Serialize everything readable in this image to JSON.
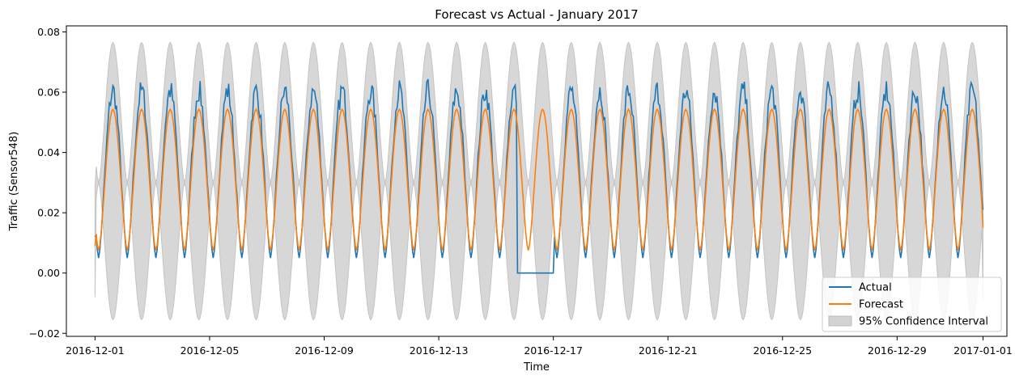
{
  "chart_data": {
    "type": "line",
    "title": "Forecast vs Actual - January 2017",
    "xlabel": "Time",
    "ylabel": "Traffic (Sensor548)",
    "xlim": [
      "2016-11-30T00:00",
      "2017-01-01T20:00"
    ],
    "ylim": [
      -0.021,
      0.082
    ],
    "x_ticks": [
      "2016-12-01",
      "2016-12-05",
      "2016-12-09",
      "2016-12-13",
      "2016-12-17",
      "2016-12-21",
      "2016-12-25",
      "2016-12-29",
      "2017-01-01"
    ],
    "y_ticks": [
      -0.02,
      0.0,
      0.02,
      0.04,
      0.06,
      0.08
    ],
    "y_tick_labels": [
      "−0.02",
      "0.00",
      "0.02",
      "0.04",
      "0.06",
      "0.08"
    ],
    "x_range_data": [
      "2016-12-01T00:00",
      "2017-01-01T00:00"
    ],
    "sampling": "hourly",
    "grid": false,
    "legend_position": "lower-right",
    "daily_pattern": {
      "period_hours": 24,
      "night_min_hour": 3,
      "forecast_min": 0.0075,
      "forecast_max": 0.0543,
      "actual_min": 0.005,
      "actual_max": 0.0605,
      "confidence_upper_max": 0.0765,
      "confidence_upper_min": 0.03,
      "confidence_lower_max": 0.03,
      "confidence_lower_min": -0.0155
    },
    "start_values": {
      "actual": 0.012,
      "forecast": 0.009,
      "ci_upper": 0.029,
      "ci_lower": -0.008
    },
    "end_values": {
      "actual": 0.021,
      "forecast": 0.015,
      "ci_upper": 0.031,
      "ci_lower": -0.009
    },
    "outage": {
      "series": "Actual",
      "start": "2016-12-15T18:00",
      "end": "2016-12-17T00:00",
      "value": 0.0
    },
    "series": [
      {
        "name": "Actual",
        "color": "#1f77b4"
      },
      {
        "name": "Forecast",
        "color": "#ff7f0e"
      },
      {
        "name": "95% Confidence Interval",
        "color": "#d3d3d3",
        "kind": "band"
      }
    ]
  }
}
